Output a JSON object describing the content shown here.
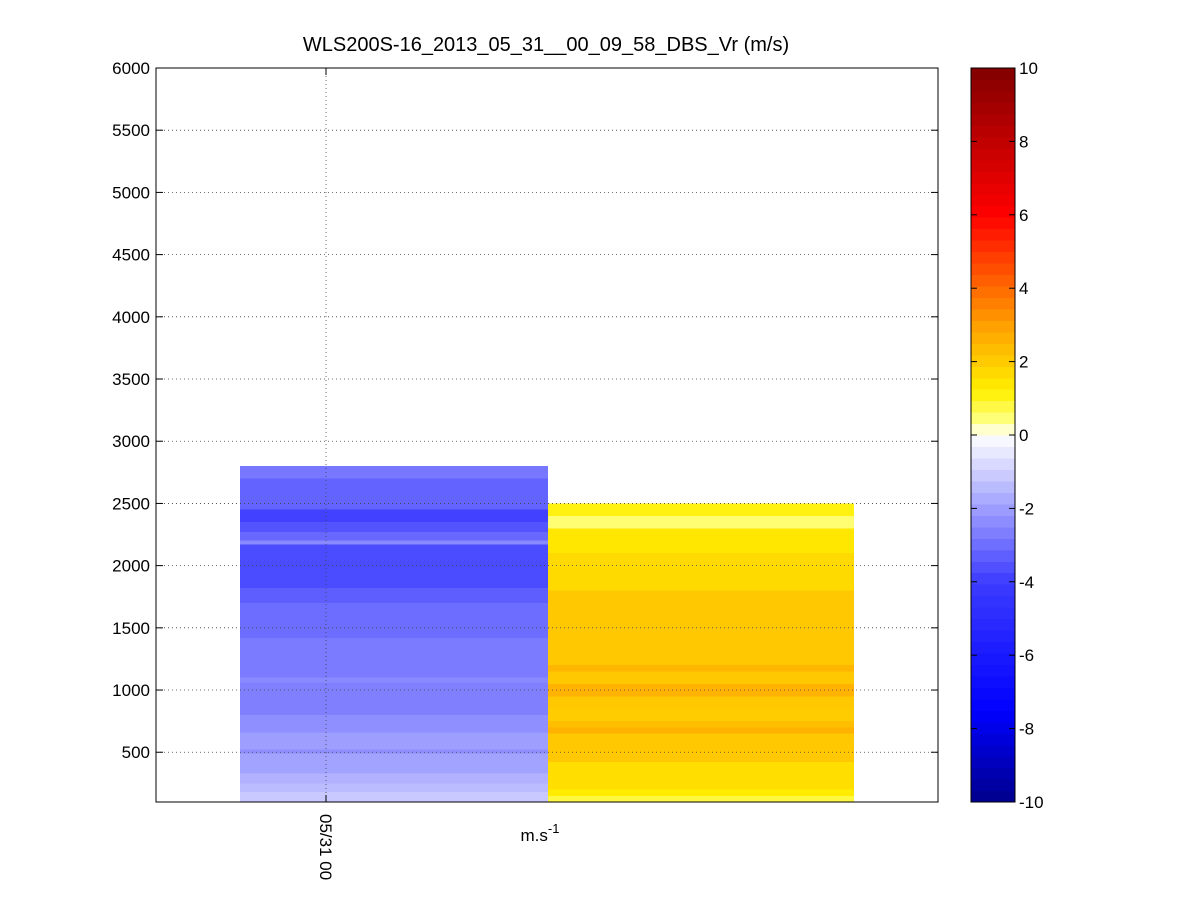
{
  "chart_data": {
    "type": "heatmap",
    "title": "WLS200S-16_2013_05_31__00_09_58_DBS_Vr (m/s)",
    "xlabel": "m.s-1",
    "xlabel_base": "m.s",
    "xlabel_superscript": "-1",
    "ylabel": "",
    "ylim": [
      100,
      6000
    ],
    "yticks": [
      500,
      1000,
      1500,
      2000,
      2500,
      3000,
      3500,
      4000,
      4500,
      5000,
      5500,
      6000
    ],
    "xtick_labels": [
      "05/31 00"
    ],
    "grid": true,
    "colorbar": {
      "min": -10,
      "max": 10,
      "ticks": [
        -10,
        -8,
        -6,
        -4,
        -2,
        0,
        2,
        4,
        6,
        8,
        10
      ]
    },
    "columns": [
      {
        "top": 2800,
        "cells": [
          {
            "from": 2700,
            "to": 2800,
            "value": -2.8
          },
          {
            "from": 2450,
            "to": 2700,
            "value": -3.2
          },
          {
            "from": 2350,
            "to": 2450,
            "value": -3.9
          },
          {
            "from": 2270,
            "to": 2350,
            "value": -3.5
          },
          {
            "from": 2200,
            "to": 2270,
            "value": -3.1
          },
          {
            "from": 2170,
            "to": 2200,
            "value": -2.4
          },
          {
            "from": 1820,
            "to": 2170,
            "value": -3.7
          },
          {
            "from": 1700,
            "to": 1820,
            "value": -3.3
          },
          {
            "from": 1420,
            "to": 1700,
            "value": -3.0
          },
          {
            "from": 1100,
            "to": 1420,
            "value": -2.7
          },
          {
            "from": 1060,
            "to": 1100,
            "value": -2.4
          },
          {
            "from": 800,
            "to": 1060,
            "value": -2.6
          },
          {
            "from": 660,
            "to": 800,
            "value": -2.3
          },
          {
            "from": 520,
            "to": 660,
            "value": -2.0
          },
          {
            "from": 490,
            "to": 520,
            "value": -2.3
          },
          {
            "from": 330,
            "to": 490,
            "value": -1.9
          },
          {
            "from": 250,
            "to": 330,
            "value": -1.6
          },
          {
            "from": 180,
            "to": 250,
            "value": -1.4
          },
          {
            "from": 100,
            "to": 180,
            "value": -1.1
          }
        ]
      },
      {
        "top": 2500,
        "cells": [
          {
            "from": 2400,
            "to": 2500,
            "value": 1.1
          },
          {
            "from": 2300,
            "to": 2400,
            "value": 0.5
          },
          {
            "from": 2100,
            "to": 2300,
            "value": 1.4
          },
          {
            "from": 1800,
            "to": 2100,
            "value": 1.7
          },
          {
            "from": 1200,
            "to": 1800,
            "value": 2.1
          },
          {
            "from": 1150,
            "to": 1200,
            "value": 2.5
          },
          {
            "from": 1050,
            "to": 1150,
            "value": 2.1
          },
          {
            "from": 950,
            "to": 1050,
            "value": 2.6
          },
          {
            "from": 850,
            "to": 950,
            "value": 2.1
          },
          {
            "from": 750,
            "to": 850,
            "value": 2.0
          },
          {
            "from": 700,
            "to": 750,
            "value": 2.3
          },
          {
            "from": 650,
            "to": 700,
            "value": 2.6
          },
          {
            "from": 420,
            "to": 650,
            "value": 2.1
          },
          {
            "from": 200,
            "to": 420,
            "value": 1.6
          },
          {
            "from": 150,
            "to": 200,
            "value": 1.3
          },
          {
            "from": 100,
            "to": 150,
            "value": 0.8
          }
        ]
      }
    ]
  }
}
